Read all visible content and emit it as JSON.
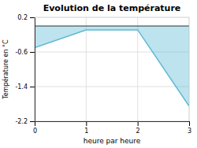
{
  "chart_data": {
    "type": "area",
    "title": "Evolution de la température",
    "xlabel": "heure par heure",
    "ylabel": "Température en °C",
    "x": [
      0,
      1,
      2,
      3
    ],
    "values": [
      -0.5,
      -0.09,
      -0.09,
      -1.85
    ],
    "color": "#5bb8d4",
    "xlim": [
      0,
      3
    ],
    "ylim": [
      -2.2,
      0.2
    ],
    "xticks": [
      0,
      1,
      2,
      3
    ],
    "yticks": [
      0.2,
      -0.6,
      -1.4,
      -2.2
    ],
    "grid": true
  }
}
